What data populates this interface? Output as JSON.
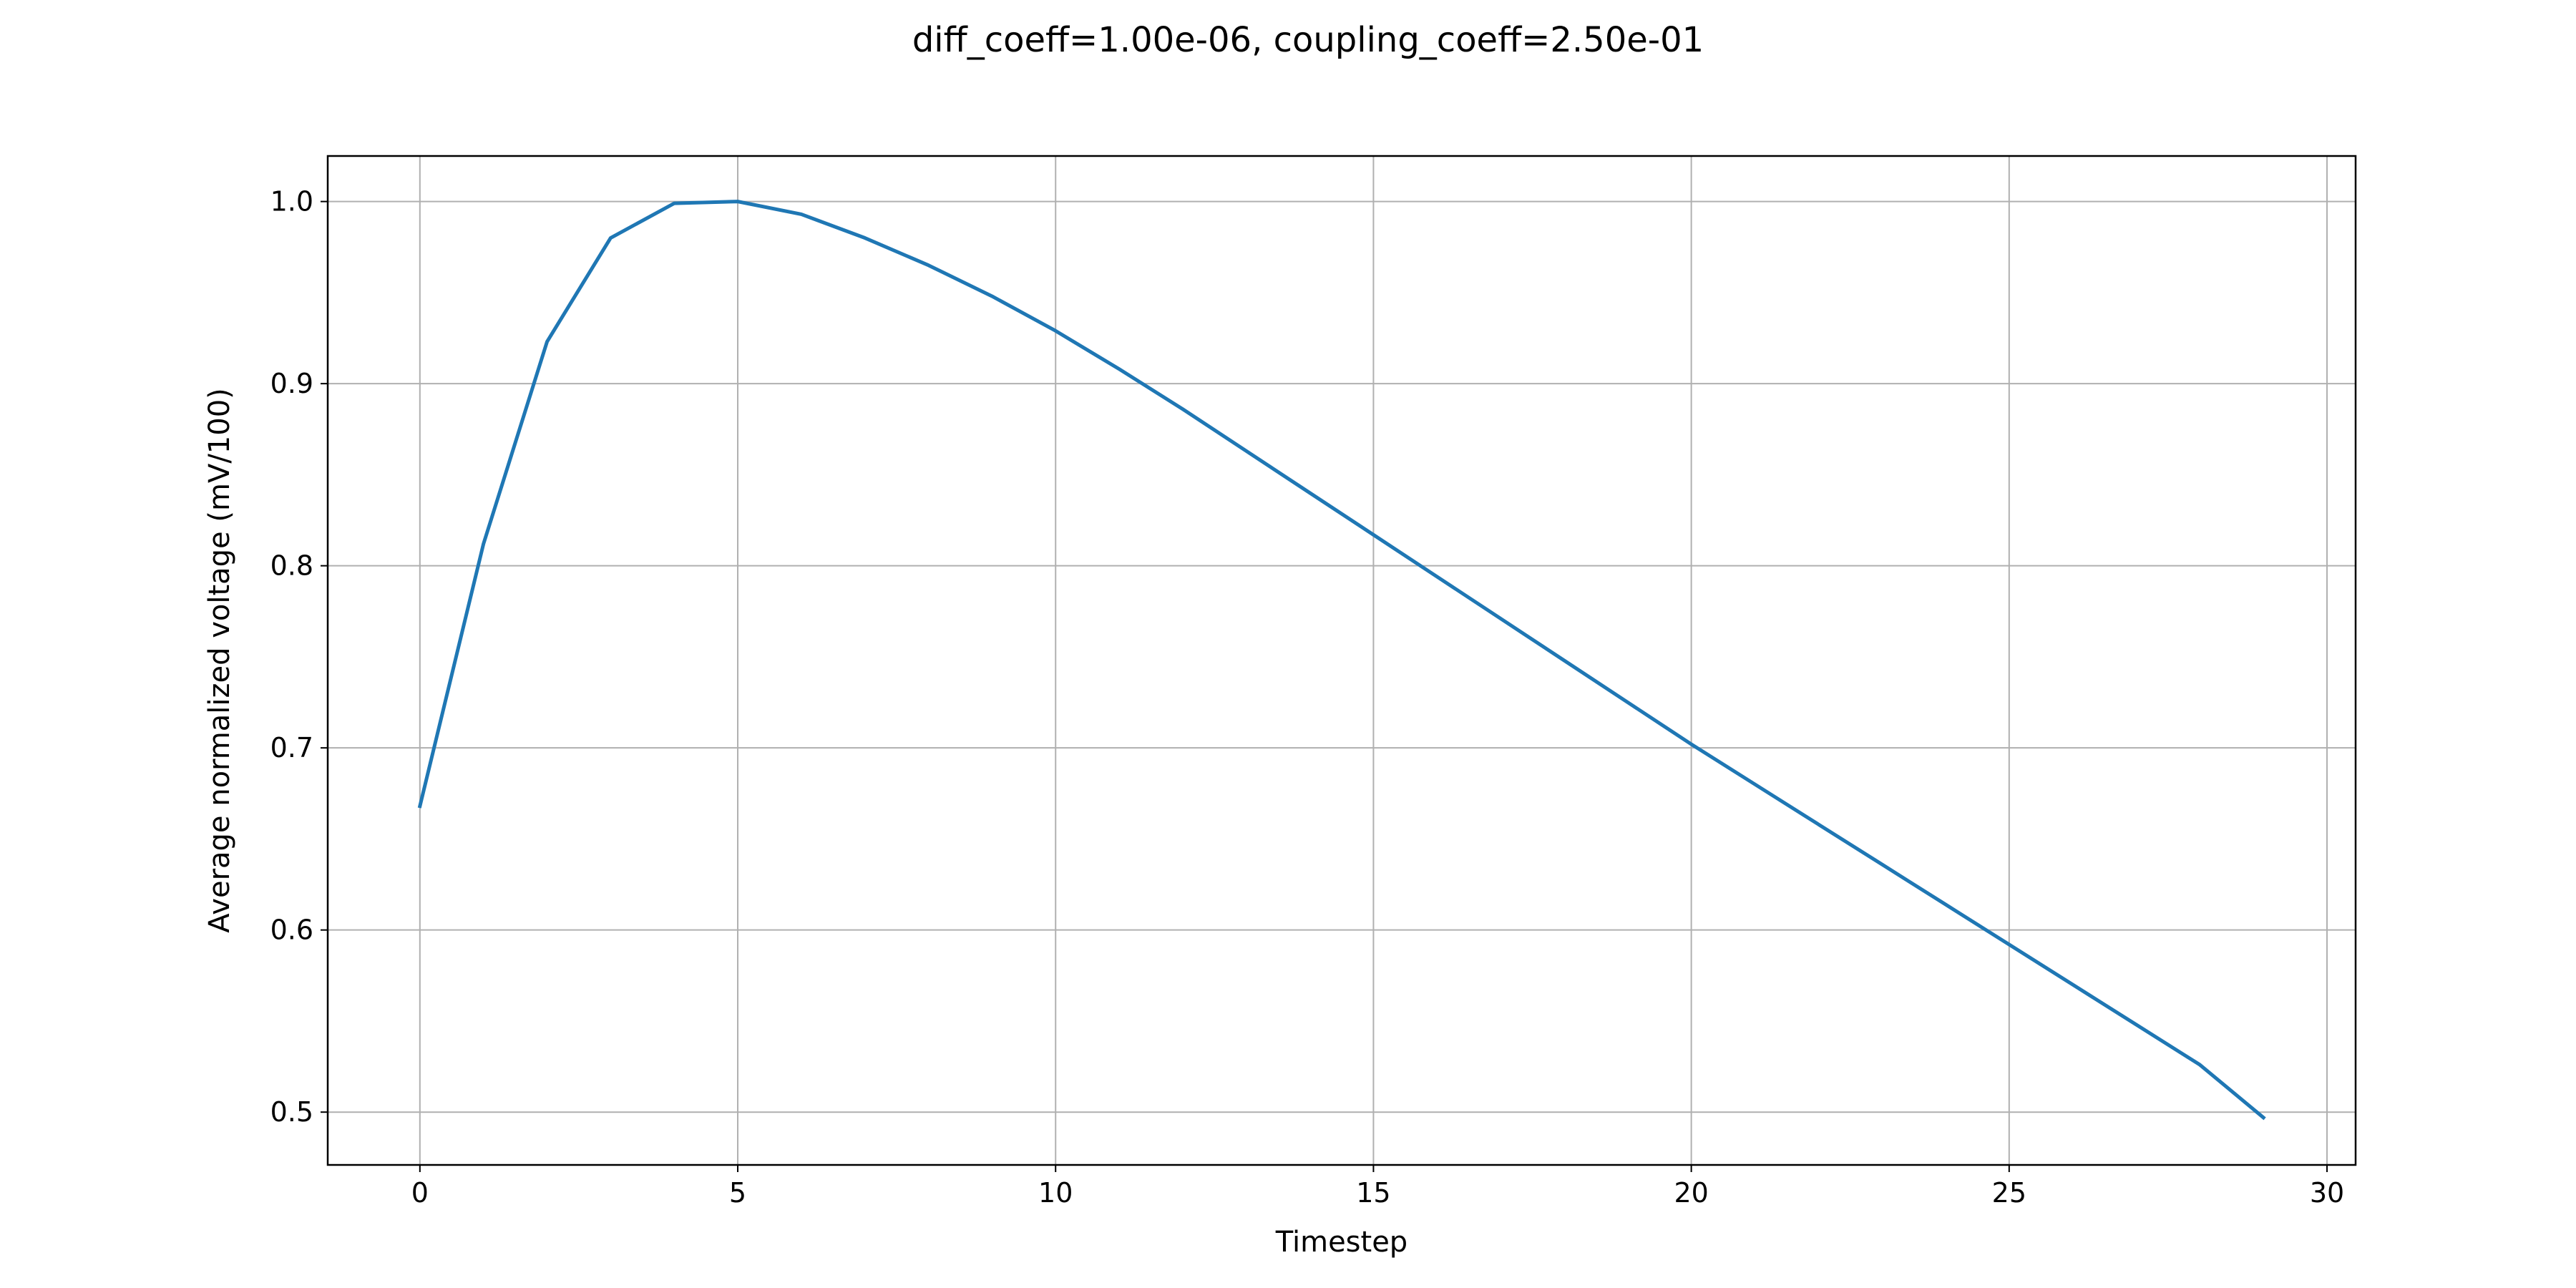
{
  "chart_data": {
    "type": "line",
    "title": "diff_coeff=1.00e-06, coupling_coeff=2.50e-01",
    "xlabel": "Timestep",
    "ylabel": "Average normalized voltage (mV/100)",
    "xlim": [
      -1.45,
      30.45
    ],
    "ylim": [
      0.471,
      1.025
    ],
    "xticks": [
      0,
      5,
      10,
      15,
      20,
      25,
      30
    ],
    "yticks": [
      0.5,
      0.6,
      0.7,
      0.8,
      0.9,
      1.0
    ],
    "xtick_labels": [
      "0",
      "5",
      "10",
      "15",
      "20",
      "25",
      "30"
    ],
    "ytick_labels": [
      "0.5",
      "0.6",
      "0.7",
      "0.8",
      "0.9",
      "1.0"
    ],
    "grid": true,
    "legend": false,
    "series": [
      {
        "color": "#1f77b4",
        "x": [
          0,
          1,
          2,
          3,
          4,
          5,
          6,
          7,
          8,
          9,
          10,
          11,
          12,
          13,
          14,
          15,
          16,
          17,
          18,
          19,
          20,
          21,
          22,
          23,
          24,
          25,
          26,
          27,
          28,
          29
        ],
        "values": [
          0.668,
          0.812,
          0.923,
          0.98,
          0.999,
          1.0,
          0.993,
          0.98,
          0.965,
          0.948,
          0.929,
          0.908,
          0.886,
          0.863,
          0.84,
          0.817,
          0.794,
          0.771,
          0.748,
          0.725,
          0.702,
          0.68,
          0.658,
          0.636,
          0.614,
          0.592,
          0.57,
          0.548,
          0.526,
          0.497
        ]
      }
    ]
  }
}
